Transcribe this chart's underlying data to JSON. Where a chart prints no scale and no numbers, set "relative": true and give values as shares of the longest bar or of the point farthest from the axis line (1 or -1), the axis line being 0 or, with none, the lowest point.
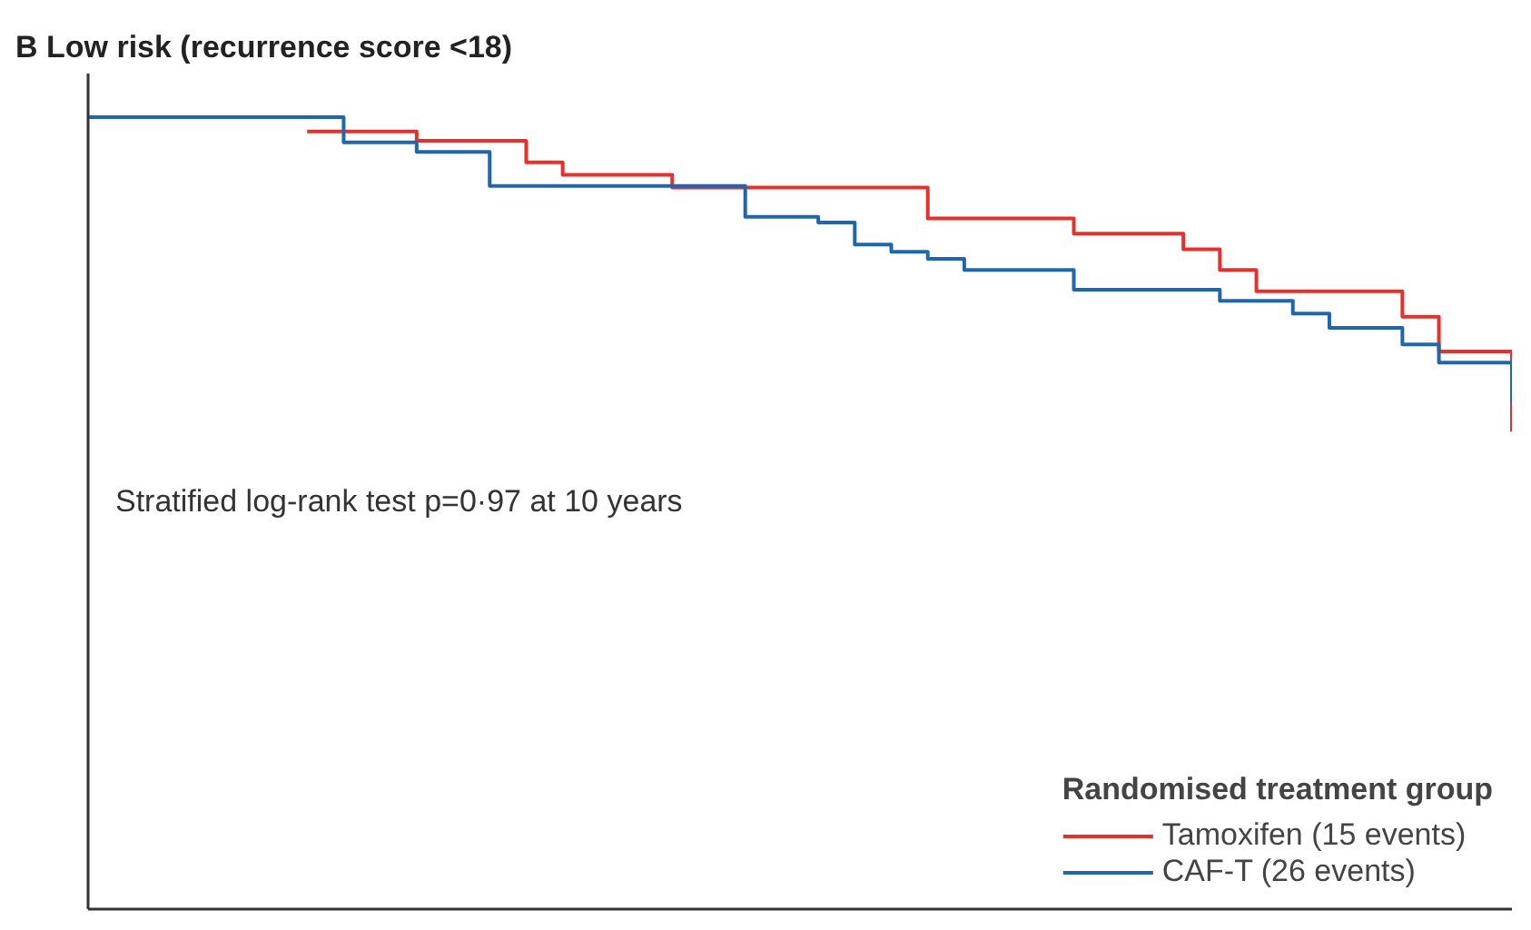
{
  "chart_data": {
    "type": "step",
    "title": "B  Low risk (recurrence score  <18)",
    "relative": true,
    "categories": [
      null,
      null,
      null,
      null,
      null,
      null,
      null,
      null,
      null,
      null,
      null,
      null,
      null,
      null,
      null,
      null,
      null,
      null,
      null,
      null,
      null,
      null,
      null,
      null,
      null,
      null,
      null,
      null,
      null,
      null,
      null,
      null,
      null,
      null,
      null,
      null,
      null,
      null,
      null,
      null
    ],
    "series": [
      {
        "name": "Tamoxifen (15 events)",
        "color": "#e8302a",
        "values": [
          null,
          null,
          null,
          null,
          null,
          null,
          0.982,
          0.982,
          0.982,
          0.97,
          0.97,
          0.97,
          0.943,
          0.927,
          0.927,
          0.927,
          0.911,
          0.911,
          0.911,
          0.911,
          0.911,
          0.911,
          0.911,
          0.872,
          0.872,
          0.872,
          0.872,
          0.853,
          0.853,
          0.853,
          0.833,
          0.807,
          0.78,
          0.78,
          0.78,
          0.78,
          0.748,
          0.704,
          0.704,
          0.603
        ]
      },
      {
        "name": "CAF-T (26 events)",
        "color": "#1f66b0",
        "values": [
          1.0,
          1.0,
          1.0,
          1.0,
          1.0,
          1.0,
          1.0,
          0.968,
          0.968,
          0.956,
          0.956,
          0.913,
          0.913,
          0.913,
          0.913,
          0.913,
          0.913,
          0.913,
          0.874,
          0.874,
          0.867,
          0.839,
          0.83,
          0.821,
          0.807,
          0.807,
          0.807,
          0.782,
          0.782,
          0.782,
          0.782,
          0.768,
          0.768,
          0.752,
          0.734,
          0.734,
          0.713,
          0.69,
          0.69,
          0.638
        ]
      }
    ],
    "legend_title": "Randomised treatment group",
    "legend": "bottom right",
    "grid": false,
    "annotations": [
      "Stratified log-rank test p=0·97 at 10 years"
    ]
  }
}
